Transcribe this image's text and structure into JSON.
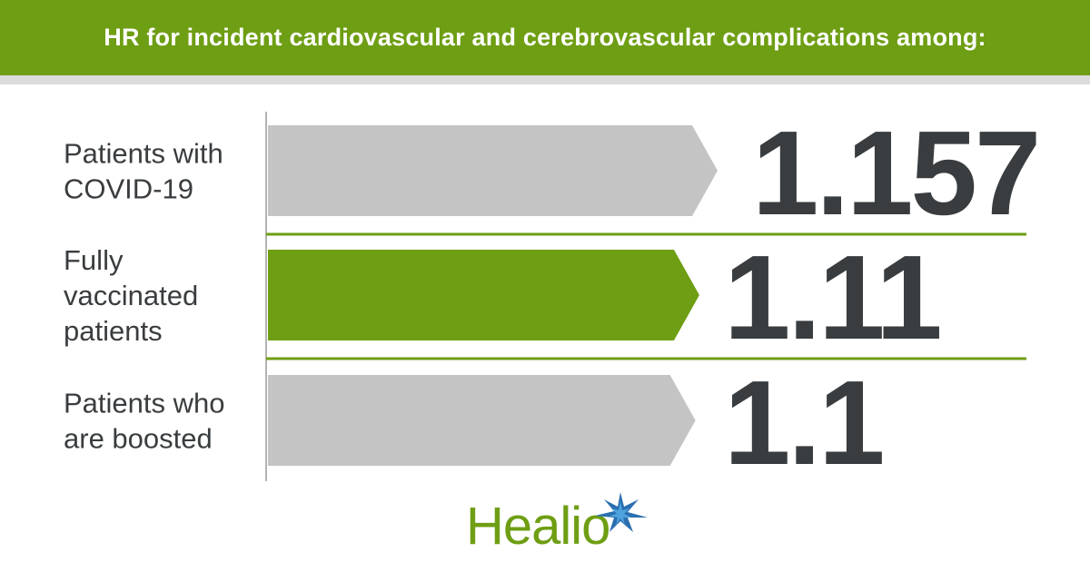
{
  "header": {
    "title": "HR for incident cardiovascular and cerebrovascular complications among:"
  },
  "colors": {
    "accent": "#6e9e13",
    "bar_default": "#c4c4c4",
    "bar_highlight": "#6e9e13",
    "text": "#3a3d3f",
    "header_strip": "#dcdcdc"
  },
  "chart_data": {
    "type": "bar",
    "orientation": "horizontal",
    "title": "HR for incident cardiovascular and cerebrovascular complications among:",
    "categories": [
      [
        "Patients with",
        "COVID-19"
      ],
      [
        "Fully",
        "vaccinated",
        "patients"
      ],
      [
        "Patients who",
        "are boosted"
      ]
    ],
    "values": [
      1.157,
      1.11,
      1.1
    ],
    "value_labels": [
      "1.157",
      "1.11",
      "1.1"
    ],
    "highlight_index": 1,
    "grid": false,
    "legend": "none"
  },
  "logo": {
    "text": "Healio",
    "icon": "star-icon",
    "star_color": "#2a6fb0"
  }
}
